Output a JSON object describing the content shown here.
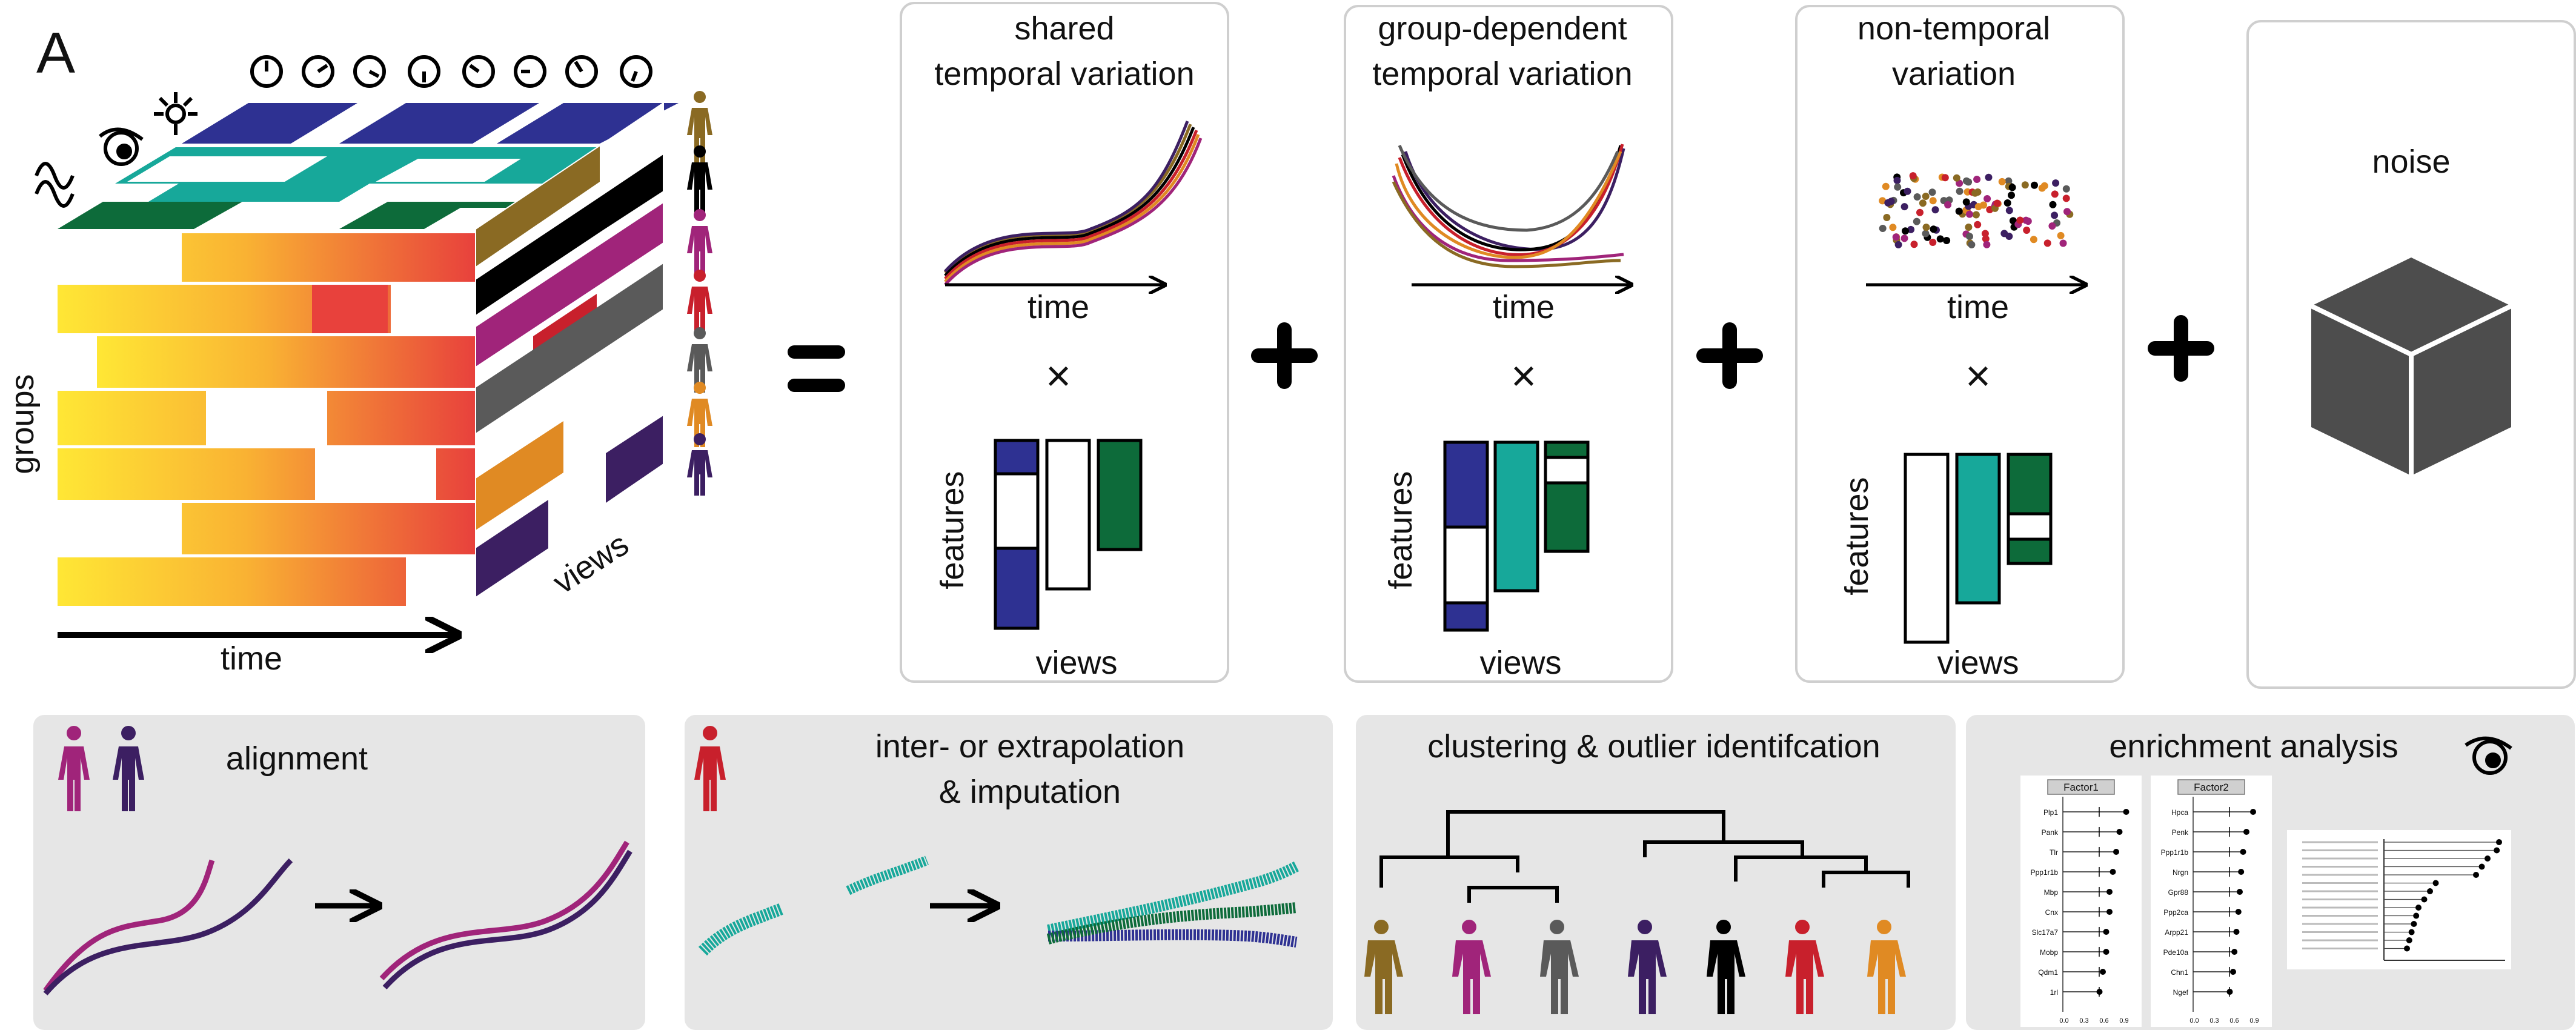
{
  "panel_label": "A",
  "cube": {
    "axis_groups": "groups",
    "axis_time": "time",
    "axis_views": "views"
  },
  "equals_sign": "=",
  "components": [
    {
      "title_line1": "shared",
      "title_line2": "temporal variation",
      "time_label": "time",
      "times_sign": "×",
      "features_label": "features",
      "views_label": "views"
    },
    {
      "title_line1": "group-dependent",
      "title_line2": "temporal variation",
      "time_label": "time",
      "times_sign": "×",
      "features_label": "features",
      "views_label": "views"
    },
    {
      "title_line1": "non-temporal",
      "title_line2": "variation",
      "time_label": "time",
      "times_sign": "×",
      "features_label": "features",
      "views_label": "views"
    },
    {
      "title_line1": "noise",
      "title_line2": ""
    }
  ],
  "plus_sign": "+",
  "applications": {
    "alignment": "alignment",
    "interpolation_line1": "inter- or extrapolation",
    "interpolation_line2": "& imputation",
    "clustering": "clustering & outlier identifcation",
    "enrichment": "enrichment analysis"
  },
  "enrichment_tables": [
    {
      "header": "Factor1",
      "genes": [
        "Plp1",
        "Pank",
        "Tlr",
        "Ppp1r1b",
        "Mbp",
        "Cnx",
        "Slc17a7",
        "Mobp",
        "Qdm1",
        "1rl"
      ],
      "ticks": [
        "0.0",
        "0.3",
        "0.6",
        "0.9"
      ]
    },
    {
      "header": "Factor2",
      "genes": [
        "Hpca",
        "Penk",
        "Ppp1r1b",
        "Nrgn",
        "Gpr88",
        "Ppp2ca",
        "Arpp21",
        "Pde10a",
        "Chn1",
        "Ngef"
      ],
      "ticks": [
        "0.0",
        "0.3",
        "0.6",
        "0.9"
      ]
    }
  ],
  "colors": {
    "blue": "#2e3192",
    "teal": "#17a89a",
    "green": "#0d6b3a",
    "magenta": "#a0247a",
    "red": "#c8202c",
    "grey": "#5a5a5a",
    "orange": "#e08a23",
    "purple": "#3c1f62",
    "olive": "#8a6a23",
    "panel_bg": "#e6e6e6",
    "noise_cube": "#4d4d4d"
  }
}
